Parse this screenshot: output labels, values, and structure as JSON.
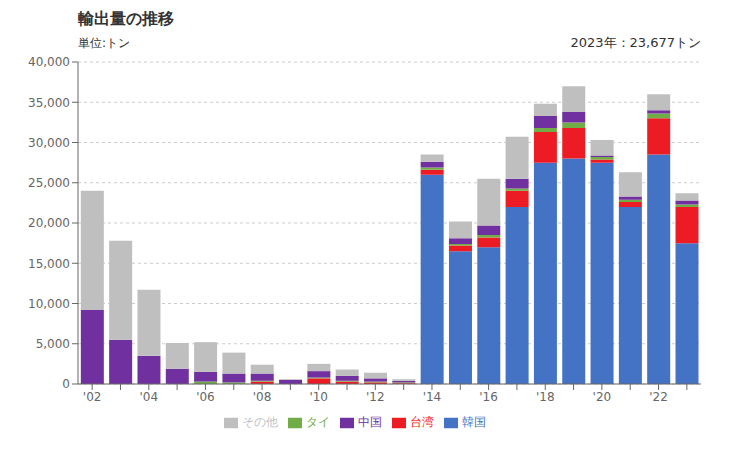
{
  "chart_data": {
    "type": "bar",
    "title": "輸出量の推移",
    "subtitle": "単位:トン",
    "annotations": [
      "2023年：23,677トン"
    ],
    "categories": [
      "'02",
      null,
      "'04",
      null,
      "'06",
      null,
      "'08",
      null,
      "'10",
      null,
      "'12",
      null,
      "'14",
      null,
      "'16",
      null,
      "'18",
      null,
      "'20",
      null,
      "'22",
      null
    ],
    "series": [
      {
        "name": "韓国",
        "color": "#4472C4",
        "values": [
          0,
          0,
          0,
          0,
          0,
          0,
          0,
          0,
          0,
          0,
          0,
          0,
          26000,
          16500,
          17000,
          22000,
          27500,
          28000,
          27500,
          22000,
          28500,
          17500
        ]
      },
      {
        "name": "台湾",
        "color": "#ED1C24",
        "values": [
          0,
          0,
          0,
          0,
          0,
          0,
          300,
          0,
          700,
          300,
          200,
          100,
          600,
          700,
          1200,
          2000,
          3800,
          3800,
          400,
          600,
          4500,
          4500
        ]
      },
      {
        "name": "タイ",
        "color": "#70AD47",
        "values": [
          0,
          0,
          0,
          0,
          300,
          200,
          100,
          0,
          100,
          100,
          100,
          100,
          300,
          200,
          300,
          300,
          500,
          700,
          300,
          300,
          600,
          300
        ]
      },
      {
        "name": "中国",
        "color": "#7030A0",
        "values": [
          9200,
          5500,
          3500,
          1900,
          1200,
          1100,
          900,
          500,
          800,
          600,
          400,
          200,
          700,
          700,
          1200,
          1200,
          1500,
          1300,
          200,
          400,
          400,
          500
        ]
      },
      {
        "name": "その他",
        "color": "#BFBFBF",
        "values": [
          14800,
          12300,
          8200,
          3200,
          3700,
          2600,
          1100,
          100,
          900,
          800,
          700,
          200,
          900,
          2100,
          5800,
          5200,
          1500,
          3200,
          1900,
          3000,
          2000,
          900
        ]
      }
    ],
    "ylim": [
      0,
      40000
    ],
    "yticks": [
      0,
      {
        "value": 5000,
        "label": "5,000"
      },
      {
        "value": 10000,
        "label": "10,000"
      },
      {
        "value": 15000,
        "label": "15,000"
      },
      {
        "value": 20000,
        "label": "20,000"
      },
      {
        "value": 25000,
        "label": "25,000"
      },
      {
        "value": 30000,
        "label": "30,000"
      },
      {
        "value": 35000,
        "label": "35,000"
      },
      {
        "value": 40000,
        "label": "40,000"
      }
    ],
    "stacked": true,
    "grid": true,
    "legend": "bottom"
  }
}
